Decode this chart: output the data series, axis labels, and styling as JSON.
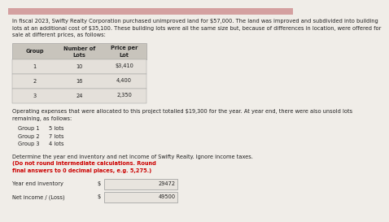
{
  "title_text": "In fiscal 2023, Swifty Realty Corporation purchased unimproved land for $57,000. The land was improved and subdivided into building\nlots at an additional cost of $35,100. These building lots were all the same size but, because of differences in location, were offered for\nsale at different prices, as follows:",
  "table_headers": [
    "Group",
    "Number of\nLots",
    "Price per\nLot"
  ],
  "table_rows": [
    [
      "1",
      "10",
      "$3,410"
    ],
    [
      "2",
      "16",
      "4,400"
    ],
    [
      "3",
      "24",
      "2,350"
    ]
  ],
  "operating_text": "Operating expenses that were allocated to this project totalled $19,300 for the year. At year end, there were also unsold lots\nremaining, as follows:",
  "unsold_lots": [
    [
      "Group 1",
      "5 lots"
    ],
    [
      "Group 2",
      "7 lots"
    ],
    [
      "Group 3",
      "4 lots"
    ]
  ],
  "determine_text": "Determine the year end inventory and net income of Swifty Realty. Ignore income taxes. ",
  "determine_bold": "(Do not round intermediate calculations. Round\nfinal answers to 0 decimal places, e.g. 5,275.)",
  "label1": "Year end inventory",
  "label2": "Net income / (Loss)",
  "dollar_sign": "$",
  "value1": "29472",
  "value2": "49500",
  "bg_color": "#f0ede8",
  "header_bg": "#c8c4bc",
  "row_bg": "#e4e0da",
  "pink_bar_color": "#d4a0a0",
  "box_color": "#e8e4de",
  "box_border": "#999999",
  "text_color": "#222222",
  "red_text_color": "#cc0000"
}
